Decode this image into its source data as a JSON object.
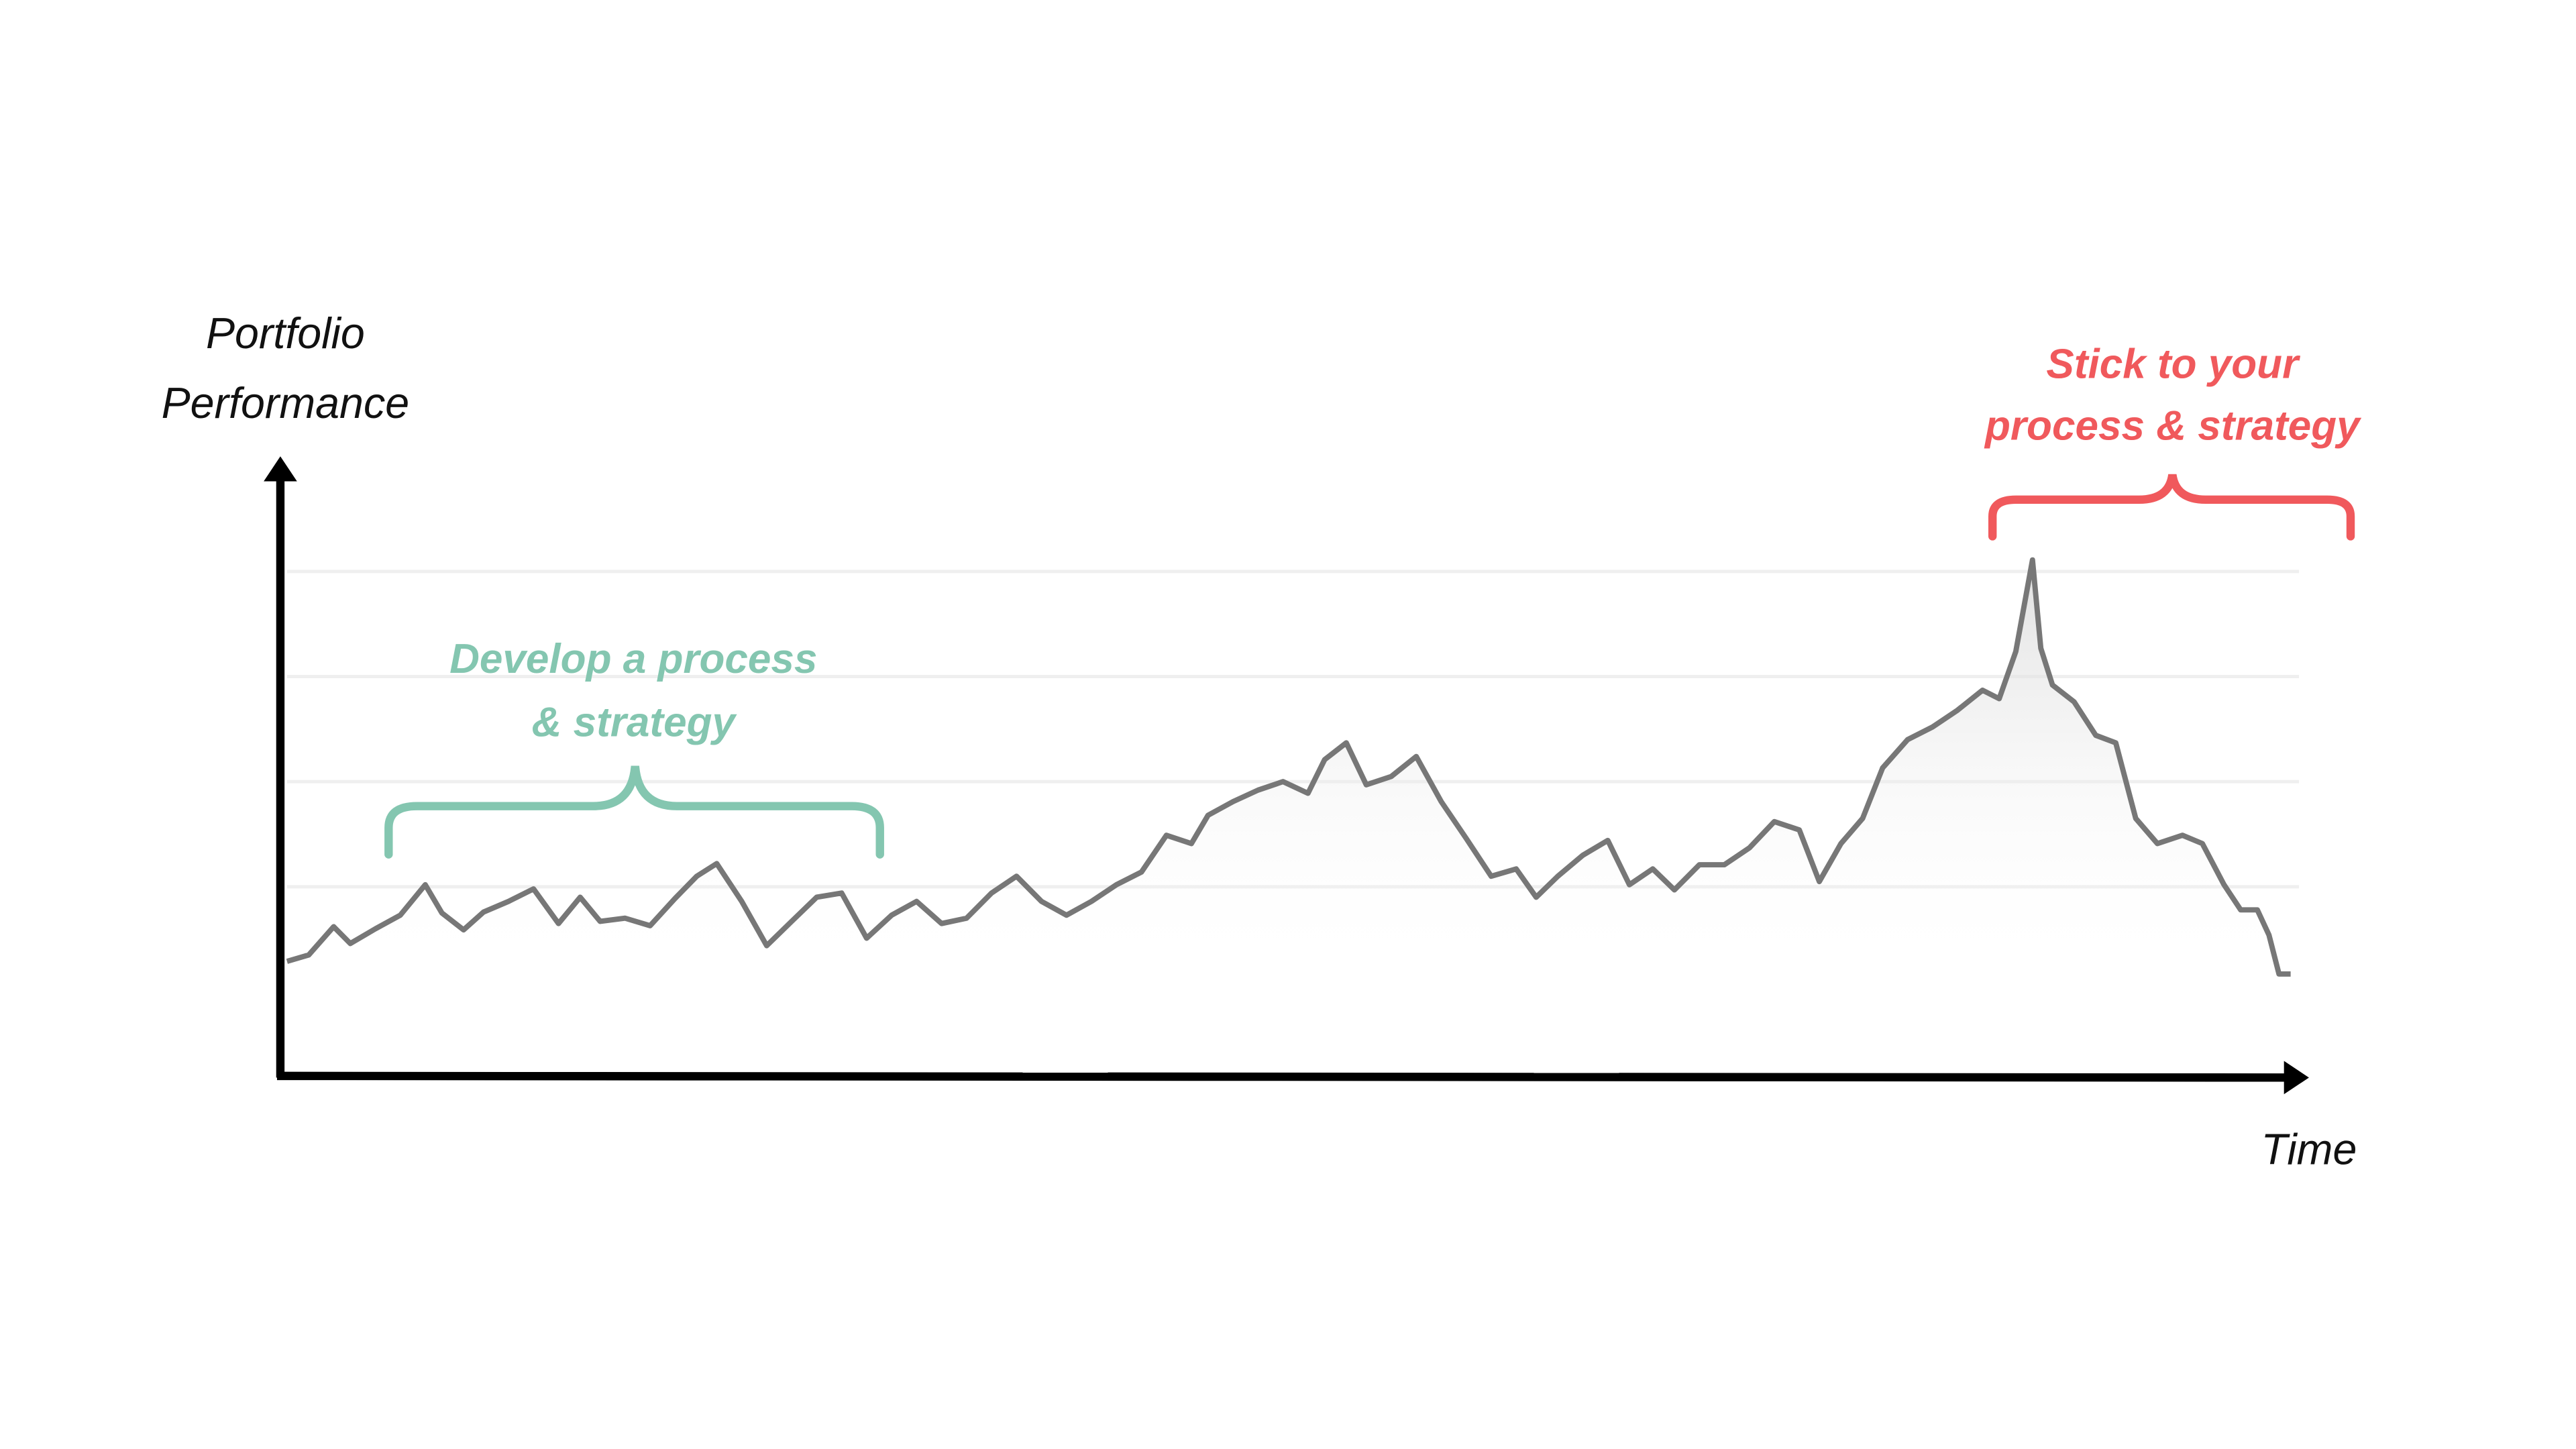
{
  "chart_data": {
    "type": "line",
    "y_label": [
      "Portfolio",
      "Performance"
    ],
    "x_label": "Time",
    "annotations": [
      {
        "text": [
          "Develop a process",
          "& strategy"
        ],
        "color": "#84c6b0"
      },
      {
        "text": [
          "Stick to your",
          "process & strategy"
        ],
        "color": "#f0595c"
      }
    ],
    "x": [
      0,
      13,
      28,
      38,
      53,
      68,
      83,
      93,
      106,
      118,
      133,
      148,
      163,
      176,
      188,
      203,
      218,
      233,
      246,
      258,
      273,
      288,
      303,
      318,
      333,
      348,
      363,
      378,
      393,
      408,
      423,
      438,
      453,
      468,
      483,
      498,
      513,
      528,
      543,
      553,
      568,
      583,
      598,
      613,
      623,
      636,
      648,
      663,
      678,
      693,
      708,
      723,
      738,
      750,
      763,
      778,
      793,
      806,
      820,
      833,
      848,
      863,
      878,
      893,
      908,
      920,
      933,
      946,
      958,
      973,
      988,
      1003,
      1018,
      1028,
      1038,
      1048,
      1053,
      1060,
      1073,
      1086,
      1098,
      1110,
      1123,
      1138,
      1150,
      1163,
      1173,
      1183,
      1190,
      1196,
      1203
    ],
    "series": [
      {
        "color": "#777777",
        "values": [
          12.9,
          13.5,
          16.2,
          14.6,
          16.0,
          17.3,
          20.2,
          17.5,
          15.9,
          17.6,
          18.6,
          19.8,
          16.5,
          19.0,
          16.7,
          17.0,
          16.3,
          18.9,
          21.0,
          22.2,
          18.6,
          14.4,
          16.7,
          19.0,
          19.4,
          15.1,
          17.3,
          18.6,
          16.5,
          17.0,
          19.4,
          21.0,
          18.6,
          17.3,
          18.6,
          20.2,
          21.4,
          24.9,
          24.1,
          26.8,
          28.1,
          29.2,
          30.0,
          28.9,
          32.1,
          33.7,
          29.7,
          30.5,
          32.4,
          28.1,
          24.6,
          21.0,
          21.7,
          19.0,
          21.0,
          23.0,
          24.4,
          20.2,
          21.7,
          19.7,
          22.1,
          22.1,
          23.7,
          26.2,
          25.4,
          20.5,
          24.1,
          26.5,
          31.3,
          34.0,
          35.2,
          36.8,
          38.7,
          37.9,
          42.4,
          51.1,
          42.7,
          39.2,
          37.6,
          34.4,
          33.7,
          26.5,
          24.1,
          24.9,
          24.1,
          20.2,
          17.8,
          17.8,
          15.4,
          11.7,
          11.7
        ]
      }
    ],
    "xlim": [
      -4,
      1213
    ],
    "ylim": [
      2,
      60
    ],
    "yticks": [
      20,
      30,
      40,
      50
    ],
    "grid": true
  }
}
